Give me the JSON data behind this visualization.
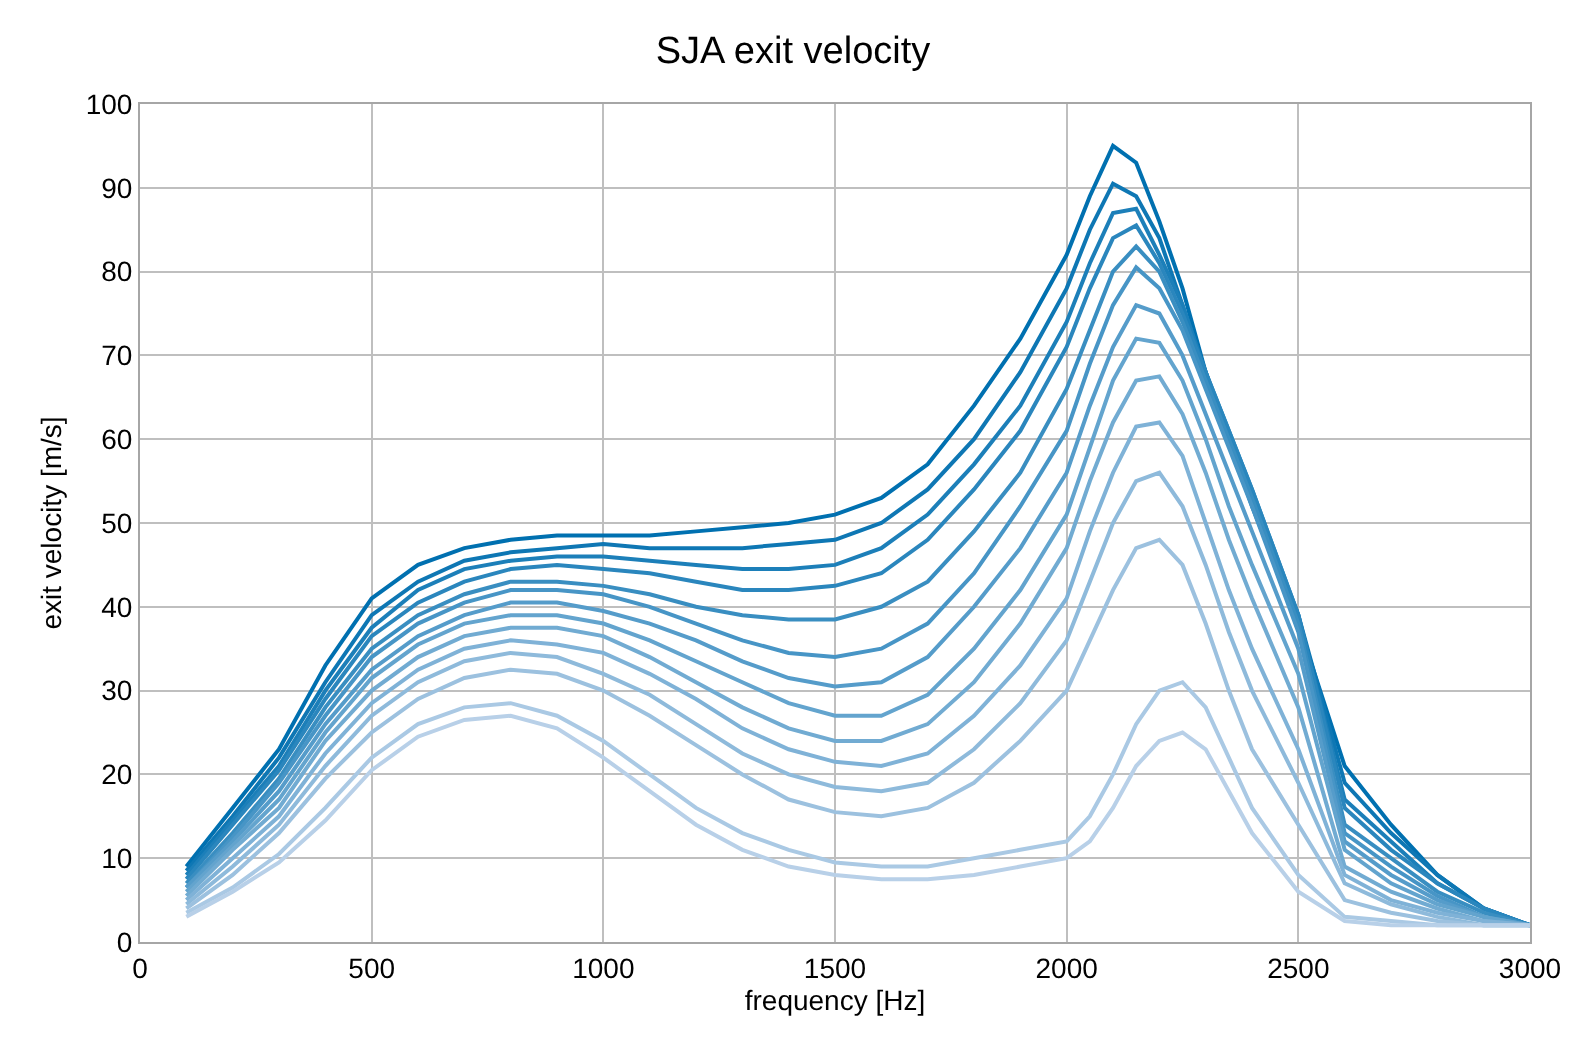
{
  "chart_data": {
    "type": "line",
    "title": "SJA exit velocity",
    "xlabel": "frequency [Hz]",
    "ylabel": "exit velocity [m/s]",
    "x": [
      100,
      200,
      300,
      400,
      500,
      600,
      700,
      800,
      900,
      1000,
      1100,
      1200,
      1300,
      1400,
      1500,
      1600,
      1700,
      1800,
      1900,
      2000,
      2050,
      2100,
      2150,
      2200,
      2250,
      2300,
      2350,
      2400,
      2500,
      2600,
      2700,
      2800,
      2900,
      3000
    ],
    "xlim": [
      0,
      3000
    ],
    "xticks": [
      0,
      500,
      1000,
      1500,
      2000,
      2500,
      3000
    ],
    "ylim": [
      0,
      100
    ],
    "yticks": [
      0,
      10,
      20,
      30,
      40,
      50,
      60,
      70,
      80,
      90,
      100
    ],
    "grid": true,
    "marker": "none",
    "line_style": "solid",
    "series": [
      {
        "color": "#0070b0",
        "values": [
          9,
          16,
          23,
          33,
          41,
          45,
          47,
          48,
          48.5,
          48.5,
          48.5,
          49,
          49.5,
          50,
          51,
          53,
          57,
          64,
          72,
          82,
          89,
          95,
          93,
          86,
          78,
          68,
          60,
          52,
          38,
          21,
          14,
          8,
          4,
          2
        ]
      },
      {
        "color": "#0e77b4",
        "values": [
          8.5,
          15,
          22,
          31,
          39,
          43,
          45.5,
          46.5,
          47,
          47.5,
          47,
          47,
          47,
          47.5,
          48,
          50,
          54,
          60,
          68,
          78,
          85,
          90.5,
          89,
          84,
          76,
          68,
          60,
          53,
          39,
          19,
          13,
          8,
          4,
          2
        ]
      },
      {
        "color": "#1c7fb9",
        "values": [
          8,
          14.5,
          21,
          30,
          37.5,
          42,
          44.5,
          45.5,
          46,
          46,
          45.5,
          45,
          44.5,
          44.5,
          45,
          47,
          51,
          57,
          64,
          74,
          81,
          87,
          87.5,
          82,
          76,
          68,
          61,
          54,
          39,
          17,
          12,
          7,
          4,
          2
        ]
      },
      {
        "color": "#2a86bd",
        "values": [
          7.5,
          14,
          20.5,
          29,
          36.5,
          40.5,
          43,
          44.5,
          45,
          44.5,
          44,
          43,
          42,
          42,
          42.5,
          44,
          48,
          54,
          61,
          71,
          78,
          84,
          85.5,
          81,
          75,
          68,
          61,
          54,
          39,
          16,
          11,
          7,
          4,
          2
        ]
      },
      {
        "color": "#398ec1",
        "values": [
          7,
          13,
          19.5,
          28,
          35,
          39,
          41.5,
          43,
          43,
          42.5,
          41.5,
          40,
          39,
          38.5,
          38.5,
          40,
          43,
          49,
          56,
          66,
          73,
          80,
          83,
          80,
          74,
          67,
          60,
          53,
          38,
          14,
          10,
          6,
          3.5,
          2
        ]
      },
      {
        "color": "#4795c6",
        "values": [
          6.5,
          12.5,
          19,
          27,
          34,
          38,
          40.5,
          42,
          42,
          41.5,
          40,
          38,
          36,
          34.5,
          34,
          35,
          38,
          44,
          52,
          61,
          69,
          76,
          80.5,
          78,
          73,
          66,
          59,
          52,
          37,
          13,
          9,
          5.5,
          3,
          2
        ]
      },
      {
        "color": "#559cca",
        "values": [
          6.5,
          12,
          18,
          26,
          32.5,
          36.5,
          39,
          40.5,
          40.5,
          39.5,
          38,
          36,
          33.5,
          31.5,
          30.5,
          31,
          34,
          40,
          47,
          56,
          64,
          71,
          76,
          75,
          70,
          63,
          56,
          49,
          35,
          12,
          8,
          5,
          3,
          2
        ]
      },
      {
        "color": "#63a4ce",
        "values": [
          6,
          11.5,
          17,
          25,
          31.5,
          35.5,
          38,
          39,
          39,
          38,
          36,
          33.5,
          31,
          28.5,
          27,
          27,
          29.5,
          35,
          42,
          51,
          59,
          67,
          72,
          71.5,
          67,
          60,
          52,
          45,
          32,
          11,
          7,
          4.5,
          3,
          2
        ]
      },
      {
        "color": "#71abd2",
        "values": [
          5.5,
          11,
          16,
          24,
          30,
          34,
          36.5,
          37.5,
          37.5,
          36.5,
          34,
          31,
          28,
          25.5,
          24,
          24,
          26,
          31,
          38,
          47,
          55,
          62,
          67,
          67.5,
          63,
          56,
          48,
          41,
          28,
          9,
          6,
          4,
          2.5,
          2
        ]
      },
      {
        "color": "#7fb2d7",
        "values": [
          5,
          10,
          15,
          22.5,
          28.5,
          32.5,
          35,
          36,
          35.5,
          34.5,
          32,
          29,
          25.5,
          23,
          21.5,
          21,
          22.5,
          27,
          33,
          41,
          49,
          56,
          61.5,
          62,
          58,
          50,
          42,
          35,
          23,
          8,
          5,
          3.5,
          2.5,
          2
        ]
      },
      {
        "color": "#8ebadb",
        "values": [
          4.5,
          9,
          14,
          21,
          27,
          31,
          33.5,
          34.5,
          34,
          32,
          29.5,
          26,
          22.5,
          20,
          18.5,
          18,
          19,
          23,
          28.5,
          36,
          43,
          50,
          55,
          56,
          52,
          45,
          37,
          30,
          19,
          7,
          4.5,
          3,
          2,
          2
        ]
      },
      {
        "color": "#9cc1df",
        "values": [
          4,
          8,
          13,
          19.5,
          25,
          29,
          31.5,
          32.5,
          32,
          30,
          27,
          23.5,
          20,
          17,
          15.5,
          15,
          16,
          19,
          24,
          30,
          36,
          42,
          47,
          48,
          45,
          38,
          30,
          23,
          14,
          5,
          3.5,
          2.5,
          2,
          2
        ]
      },
      {
        "color": "#aac9e4",
        "values": [
          3.5,
          6.5,
          10.5,
          16,
          22,
          26,
          28,
          28.5,
          27,
          24,
          20,
          16,
          13,
          11,
          9.5,
          9,
          9,
          10,
          11,
          12,
          15,
          20,
          26,
          30,
          31,
          28,
          22,
          16,
          8,
          3,
          2.5,
          2,
          2,
          2
        ]
      },
      {
        "color": "#b8d0e8",
        "values": [
          3,
          6,
          9.5,
          14.5,
          20.5,
          24.5,
          26.5,
          27,
          25.5,
          22,
          18,
          14,
          11,
          9,
          8,
          7.5,
          7.5,
          8,
          9,
          10,
          12,
          16,
          21,
          24,
          25,
          23,
          18,
          13,
          6,
          2.5,
          2,
          2,
          2,
          2
        ]
      }
    ]
  }
}
